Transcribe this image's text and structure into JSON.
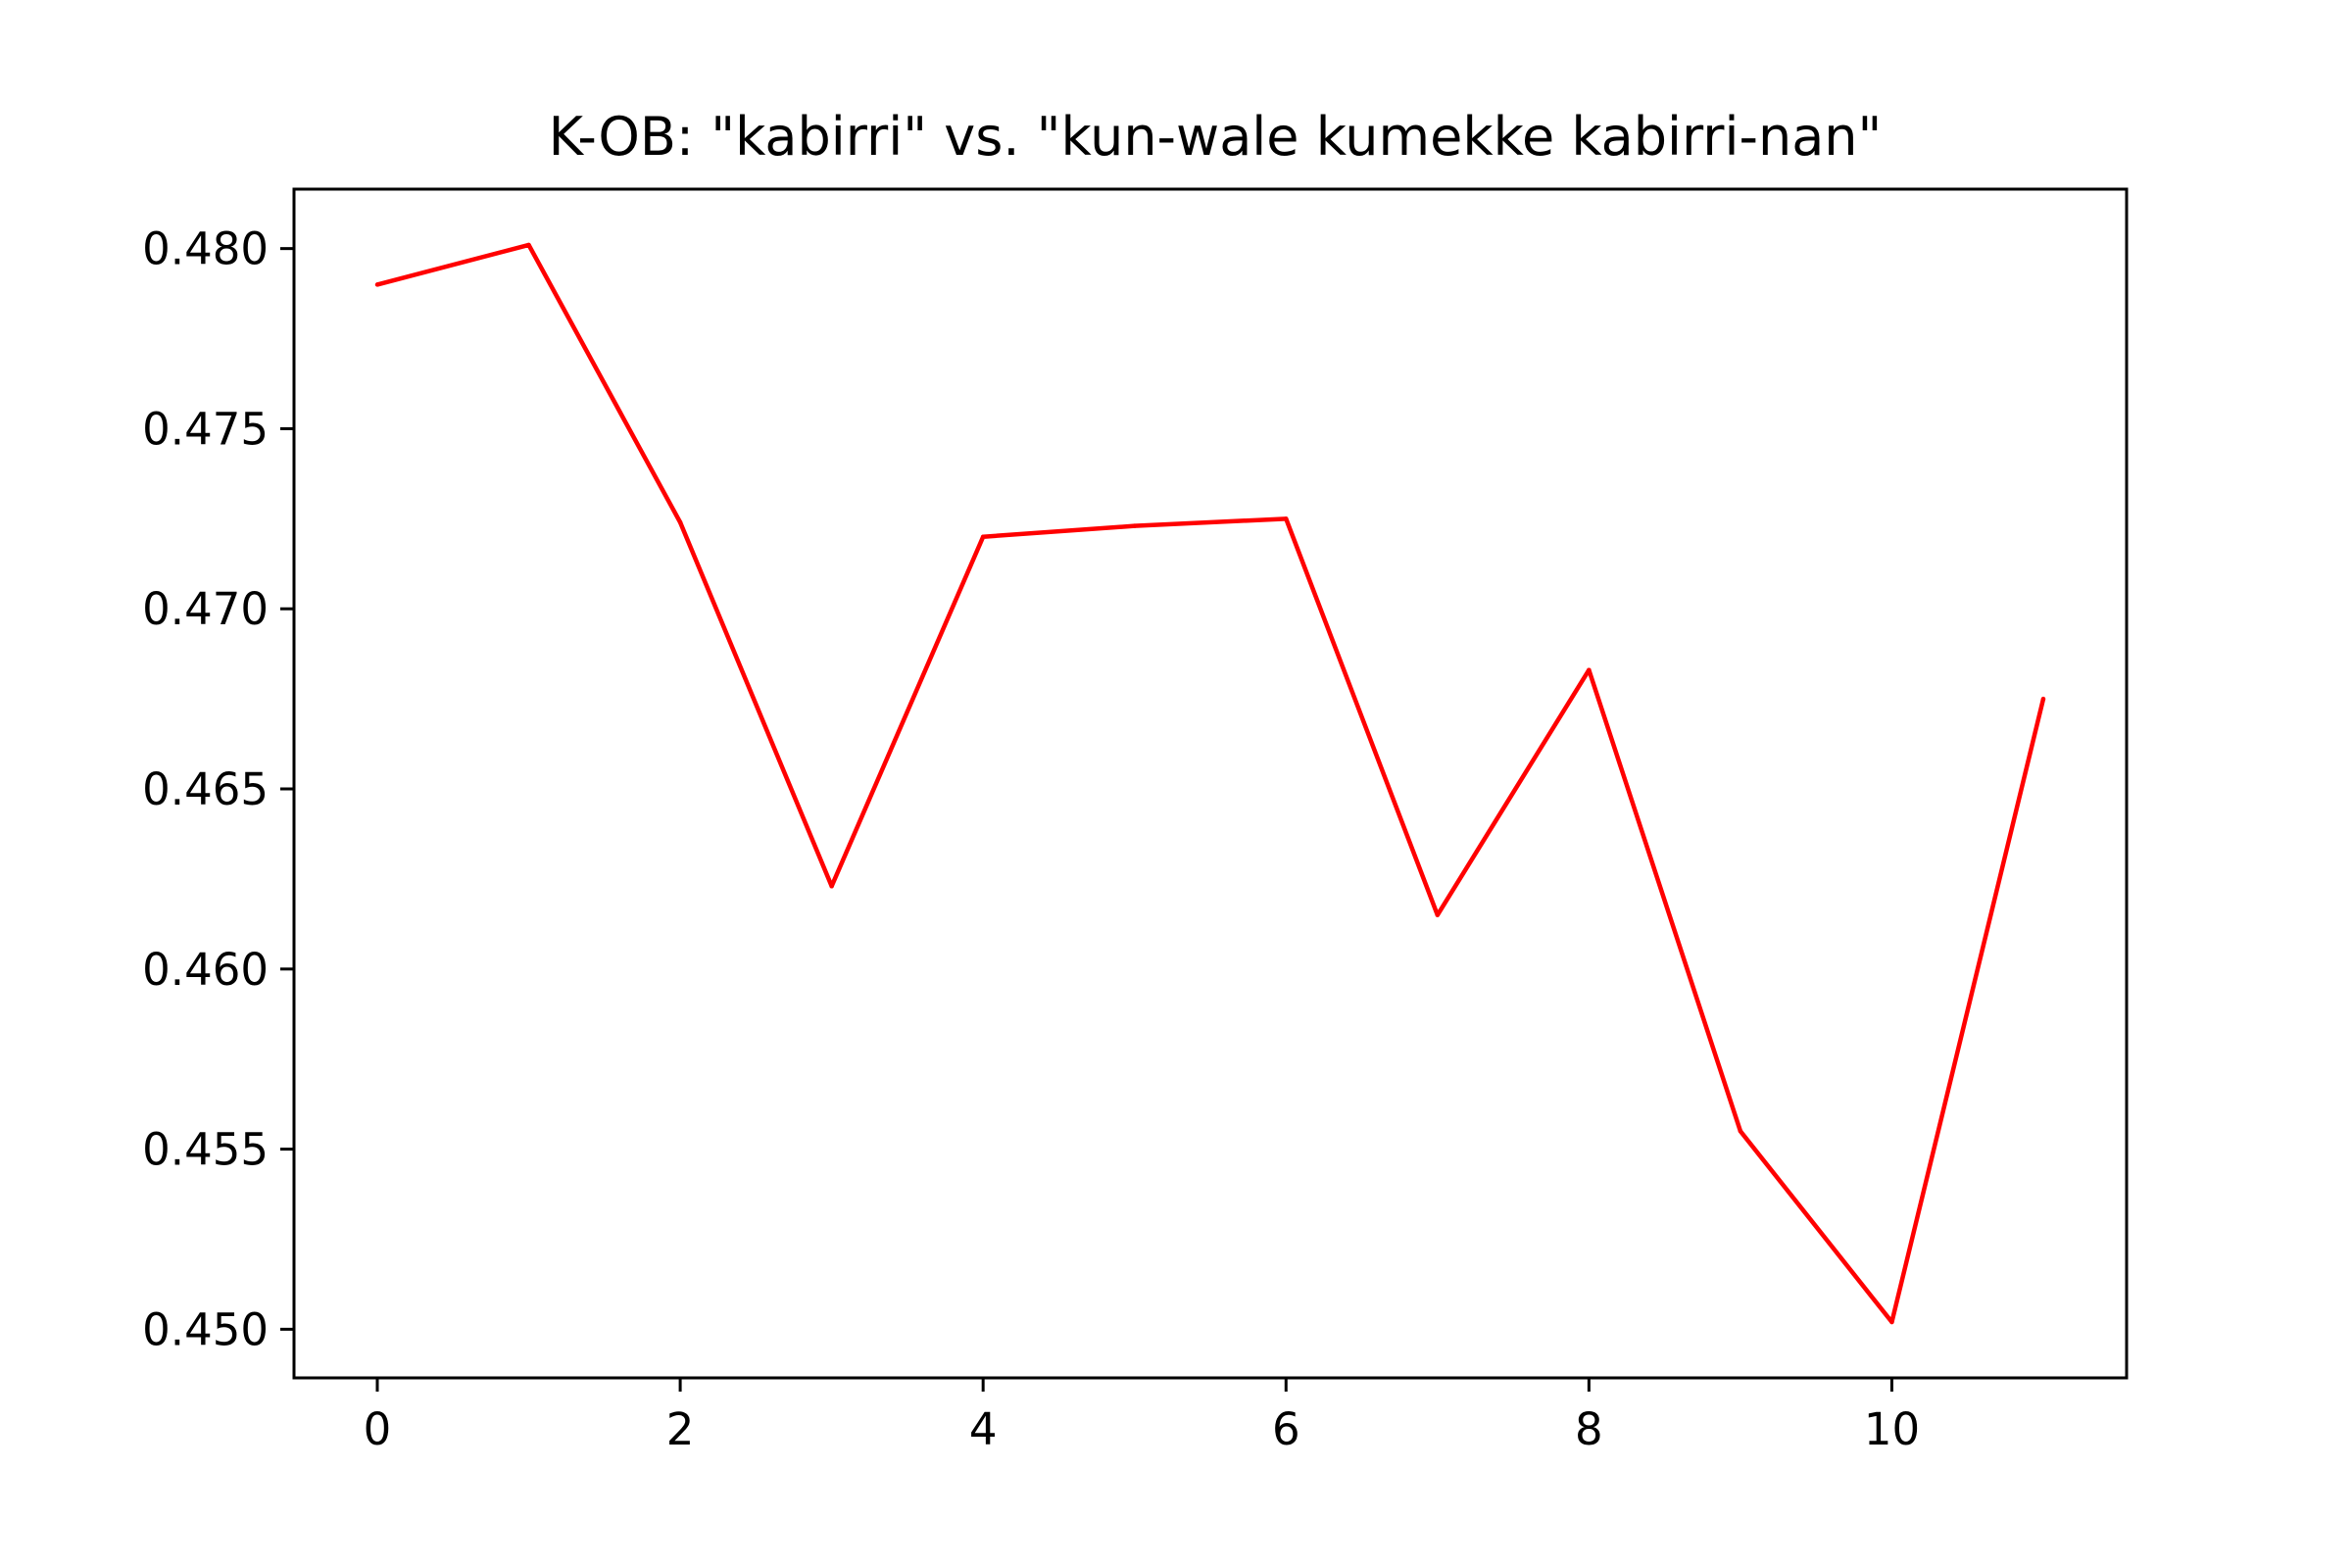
{
  "chart_data": {
    "type": "line",
    "title": "K-OB: \"kabirri\" vs. \"kun-wale kumekke kabirri-nan\"",
    "xlabel": "",
    "ylabel": "",
    "xlim": [
      -0.55,
      11.55
    ],
    "ylim": [
      0.44865,
      0.48165
    ],
    "x_ticks": [
      0,
      2,
      4,
      6,
      8,
      10
    ],
    "x_tick_labels": [
      "0",
      "2",
      "4",
      "6",
      "8",
      "10"
    ],
    "y_ticks": [
      0.45,
      0.455,
      0.46,
      0.465,
      0.47,
      0.475,
      0.48
    ],
    "y_tick_labels": [
      "0.450",
      "0.455",
      "0.460",
      "0.465",
      "0.470",
      "0.475",
      "0.480"
    ],
    "grid": false,
    "legend": "none",
    "series": [
      {
        "color": "#ff0000",
        "x": [
          0,
          1,
          2,
          3,
          4,
          5,
          6,
          7,
          8,
          9,
          10,
          11
        ],
        "values": [
          0.479,
          0.4801,
          0.4724,
          0.4623,
          0.472,
          0.4723,
          0.4725,
          0.4615,
          0.4683,
          0.4555,
          0.4502,
          0.4675
        ]
      }
    ]
  }
}
